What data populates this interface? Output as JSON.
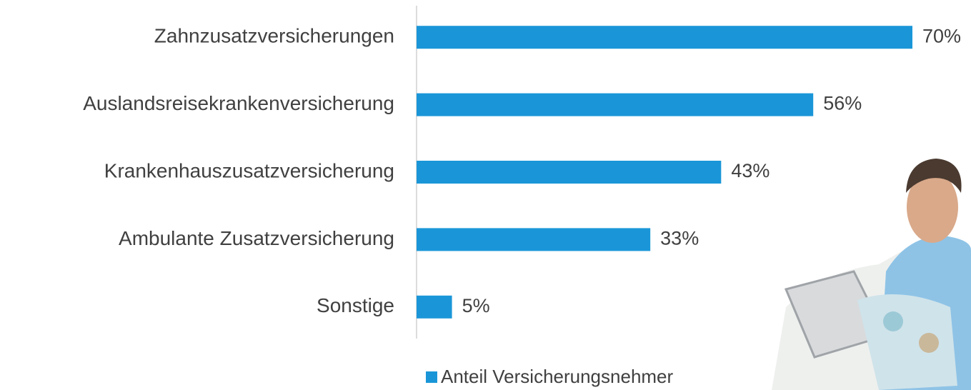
{
  "chart_data": {
    "type": "bar",
    "orientation": "horizontal",
    "categories": [
      "Zahnzusatzversicherungen",
      "Auslandsreisekrankenversicherung",
      "Krankenhauszusatzversicherung",
      "Ambulante Zusatzversicherung",
      "Sonstige"
    ],
    "series": [
      {
        "name": "Anteil Versicherungsnehmer",
        "color": "#1a96d8",
        "values": [
          70,
          56,
          43,
          33,
          5
        ],
        "value_labels": [
          "70%",
          "56%",
          "43%",
          "33%",
          "5%"
        ]
      }
    ],
    "xlim": [
      0,
      70
    ],
    "legend": "bottom"
  }
}
